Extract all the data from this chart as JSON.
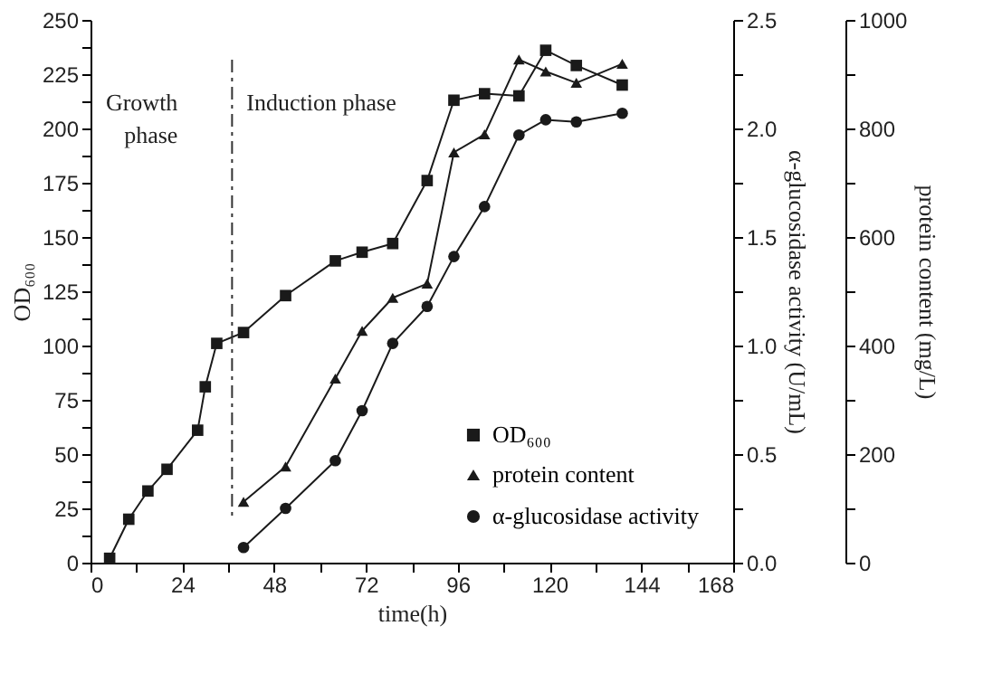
{
  "chart_data": {
    "type": "line",
    "xlabel": "time(h)",
    "ylabel": "OD₆₀₀",
    "y2label": "α-glucosidase activity (U/mL)",
    "y3label": "protein content (mg/L)",
    "xlim": [
      0,
      168
    ],
    "xticks": [
      0,
      {
        "value": 12,
        "label": null
      },
      24,
      {
        "value": 36,
        "label": null
      },
      48,
      {
        "value": 60,
        "label": null
      },
      72,
      {
        "value": 84,
        "label": null
      },
      96,
      {
        "value": 108,
        "label": null
      },
      120,
      {
        "value": 132,
        "label": null
      },
      144,
      {
        "value": 156,
        "label": null
      },
      168
    ],
    "ylim": [
      0,
      250
    ],
    "yticks": [
      0,
      {
        "value": 12.5,
        "label": null
      },
      25,
      {
        "value": 37.5,
        "label": null
      },
      50,
      {
        "value": 62.5,
        "label": null
      },
      75,
      {
        "value": 87.5,
        "label": null
      },
      100,
      {
        "value": 112.5,
        "label": null
      },
      125,
      {
        "value": 137.5,
        "label": null
      },
      150,
      {
        "value": 162.5,
        "label": null
      },
      175,
      {
        "value": 187.5,
        "label": null
      },
      200,
      {
        "value": 212.5,
        "label": null
      },
      225,
      {
        "value": 237.5,
        "label": null
      },
      250
    ],
    "y2lim": [
      0,
      2.5
    ],
    "y2ticks": [
      {
        "value": 0,
        "label": "0.0"
      },
      {
        "value": 0.25,
        "label": null
      },
      {
        "value": 0.5,
        "label": "0.5"
      },
      {
        "value": 0.75,
        "label": null
      },
      {
        "value": 1,
        "label": "1.0"
      },
      {
        "value": 1.25,
        "label": null
      },
      {
        "value": 1.5,
        "label": "1.5"
      },
      {
        "value": 1.75,
        "label": null
      },
      {
        "value": 2,
        "label": "2.0"
      },
      {
        "value": 2.25,
        "label": null
      },
      {
        "value": 2.5,
        "label": "2.5"
      }
    ],
    "y3lim": [
      0,
      1000
    ],
    "y3ticks": [
      0,
      {
        "value": 100,
        "label": null
      },
      200,
      {
        "value": 300,
        "label": null
      },
      400,
      {
        "value": 500,
        "label": null
      },
      600,
      {
        "value": 700,
        "label": null
      },
      800,
      {
        "value": 900,
        "label": null
      },
      1000
    ],
    "grid": false,
    "legend": "bottom right",
    "ref_lines": [
      {
        "axis": "x",
        "value": 37,
        "line_style": "dashed"
      }
    ],
    "annotations": [
      "Growth phase",
      "Induction phase"
    ],
    "series": [
      {
        "name": "OD₆₀₀",
        "color": "#1a1a1a",
        "marker": "square",
        "axis": "y",
        "x": [
          5,
          10,
          15,
          20,
          28,
          30,
          33,
          40,
          51,
          64,
          71,
          79,
          88,
          95,
          103,
          112,
          119,
          127,
          139
        ],
        "values": [
          2,
          20,
          33,
          43,
          61,
          81,
          101,
          106,
          123,
          139,
          143,
          147,
          176,
          213,
          216,
          215,
          236,
          229,
          220
        ]
      },
      {
        "name": "protein content",
        "color": "#1a1a1a",
        "marker": "triangle",
        "axis": "y3",
        "x": [
          40,
          51,
          64,
          71,
          79,
          88,
          95,
          103,
          112,
          119,
          127,
          139
        ],
        "values": [
          112,
          177,
          339,
          427,
          488,
          514,
          756,
          789,
          927,
          905,
          884,
          919
        ]
      },
      {
        "name": "α-glucosidase activity",
        "color": "#1a1a1a",
        "marker": "circle",
        "axis": "y2",
        "x": [
          40,
          51,
          64,
          71,
          79,
          88,
          95,
          103,
          112,
          119,
          127,
          139
        ],
        "values": [
          0.07,
          0.25,
          0.47,
          0.7,
          1.01,
          1.18,
          1.41,
          1.64,
          1.97,
          2.04,
          2.03,
          2.07
        ]
      }
    ]
  }
}
